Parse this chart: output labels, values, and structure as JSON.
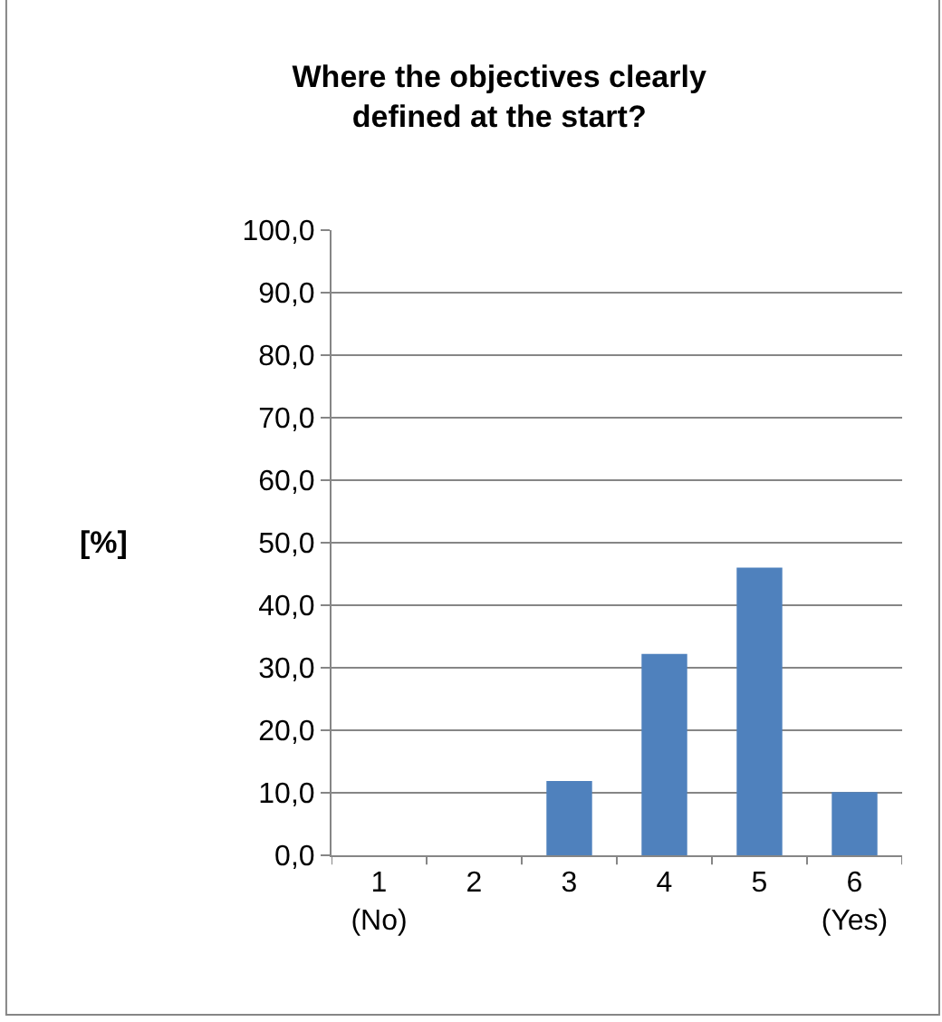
{
  "chart_data": {
    "type": "bar",
    "title": "Where the objectives clearly\ndefined at the start?",
    "ylabel": "[%]",
    "categories": [
      "1\n(No)",
      "2",
      "3",
      "4",
      "5",
      "6\n(Yes)"
    ],
    "values": [
      0,
      0,
      11.9,
      32.2,
      46.0,
      10.1
    ],
    "color": "#4f81bd",
    "ylim": [
      0,
      100
    ],
    "yticks": [
      {
        "value": 0,
        "label": "0,0"
      },
      {
        "value": 10,
        "label": "10,0"
      },
      {
        "value": 20,
        "label": "20,0"
      },
      {
        "value": 30,
        "label": "30,0"
      },
      {
        "value": 40,
        "label": "40,0"
      },
      {
        "value": 50,
        "label": "50,0"
      },
      {
        "value": 60,
        "label": "60,0"
      },
      {
        "value": 70,
        "label": "70,0"
      },
      {
        "value": 80,
        "label": "80,0"
      },
      {
        "value": 90,
        "label": "90,0"
      },
      {
        "value": 100,
        "label": "100,0"
      }
    ],
    "grid": "y"
  }
}
